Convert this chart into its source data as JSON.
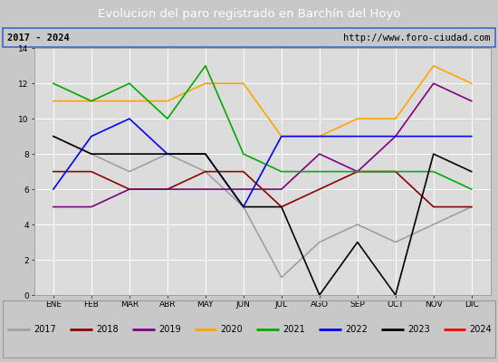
{
  "title": "Evolucion del paro registrado en Barchín del Hoyo",
  "subtitle_left": "2017 - 2024",
  "subtitle_right": "http://www.foro-ciudad.com",
  "xlabel_ticks": [
    "ENE",
    "FEB",
    "MAR",
    "ABR",
    "MAY",
    "JUN",
    "JUL",
    "AGO",
    "SEP",
    "OCT",
    "NOV",
    "DIC"
  ],
  "ylim": [
    0,
    14
  ],
  "yticks": [
    0,
    2,
    4,
    6,
    8,
    10,
    12,
    14
  ],
  "background_color": "#c8c8c8",
  "plot_bg": "#dcdcdc",
  "title_bg": "#4472c4",
  "title_color": "white",
  "subtitle_bg": "#ffffff",
  "series": {
    "2017": {
      "color": "#a0a0a0",
      "data": [
        9,
        8,
        7,
        8,
        7,
        5,
        1,
        3,
        4,
        3,
        4,
        5
      ]
    },
    "2018": {
      "color": "#8b0000",
      "data": [
        7,
        7,
        6,
        6,
        7,
        7,
        5,
        6,
        7,
        7,
        5,
        5
      ]
    },
    "2019": {
      "color": "#800080",
      "data": [
        5,
        5,
        6,
        6,
        6,
        6,
        6,
        8,
        7,
        9,
        12,
        11
      ]
    },
    "2020": {
      "color": "#ffa500",
      "data": [
        11,
        11,
        11,
        11,
        12,
        12,
        9,
        9,
        10,
        10,
        13,
        12
      ]
    },
    "2021": {
      "color": "#00aa00",
      "data": [
        12,
        11,
        12,
        10,
        13,
        8,
        7,
        7,
        7,
        7,
        7,
        6
      ]
    },
    "2022": {
      "color": "#0000ff",
      "data": [
        6,
        9,
        10,
        8,
        8,
        5,
        9,
        9,
        9,
        9,
        9,
        9
      ]
    },
    "2023": {
      "color": "#000000",
      "data": [
        9,
        8,
        8,
        8,
        8,
        5,
        5,
        0,
        3,
        0,
        8,
        7
      ]
    },
    "2024": {
      "color": "#ff0000",
      "data": [
        5,
        null,
        null,
        null,
        null,
        null,
        null,
        null,
        null,
        null,
        null,
        null
      ]
    }
  },
  "legend_order": [
    "2017",
    "2018",
    "2019",
    "2020",
    "2021",
    "2022",
    "2023",
    "2024"
  ]
}
